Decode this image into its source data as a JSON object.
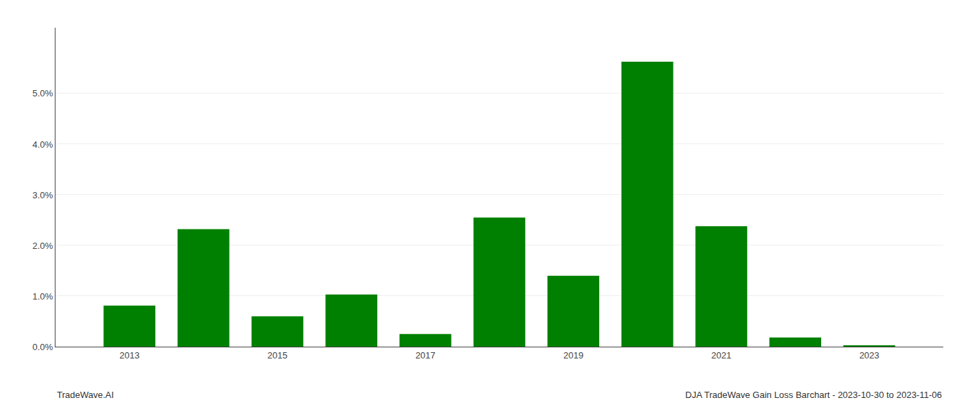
{
  "chart_data": {
    "type": "bar",
    "x": [
      2013,
      2014,
      2015,
      2016,
      2017,
      2018,
      2019,
      2020,
      2021,
      2022,
      2023
    ],
    "values": [
      0.0081,
      0.0232,
      0.006,
      0.0103,
      0.0025,
      0.0255,
      0.014,
      0.0563,
      0.0238,
      0.0018,
      0.0002
    ],
    "color": "#008000",
    "xlim": [
      2012,
      2024
    ],
    "xticks": [
      2013,
      2015,
      2017,
      2019,
      2021,
      2023
    ],
    "ylim": [
      0,
      0.063
    ],
    "yticks": [
      {
        "value": 0.0,
        "label": "0.0%"
      },
      {
        "value": 0.01,
        "label": "1.0%"
      },
      {
        "value": 0.02,
        "label": "2.0%"
      },
      {
        "value": 0.03,
        "label": "3.0%"
      },
      {
        "value": 0.04,
        "label": "4.0%"
      },
      {
        "value": 0.05,
        "label": "5.0%"
      }
    ],
    "grid": true,
    "annotations": [
      "TradeWave.AI",
      "DJA TradeWave Gain Loss Barchart - 2023-10-30 to 2023-11-06"
    ]
  }
}
